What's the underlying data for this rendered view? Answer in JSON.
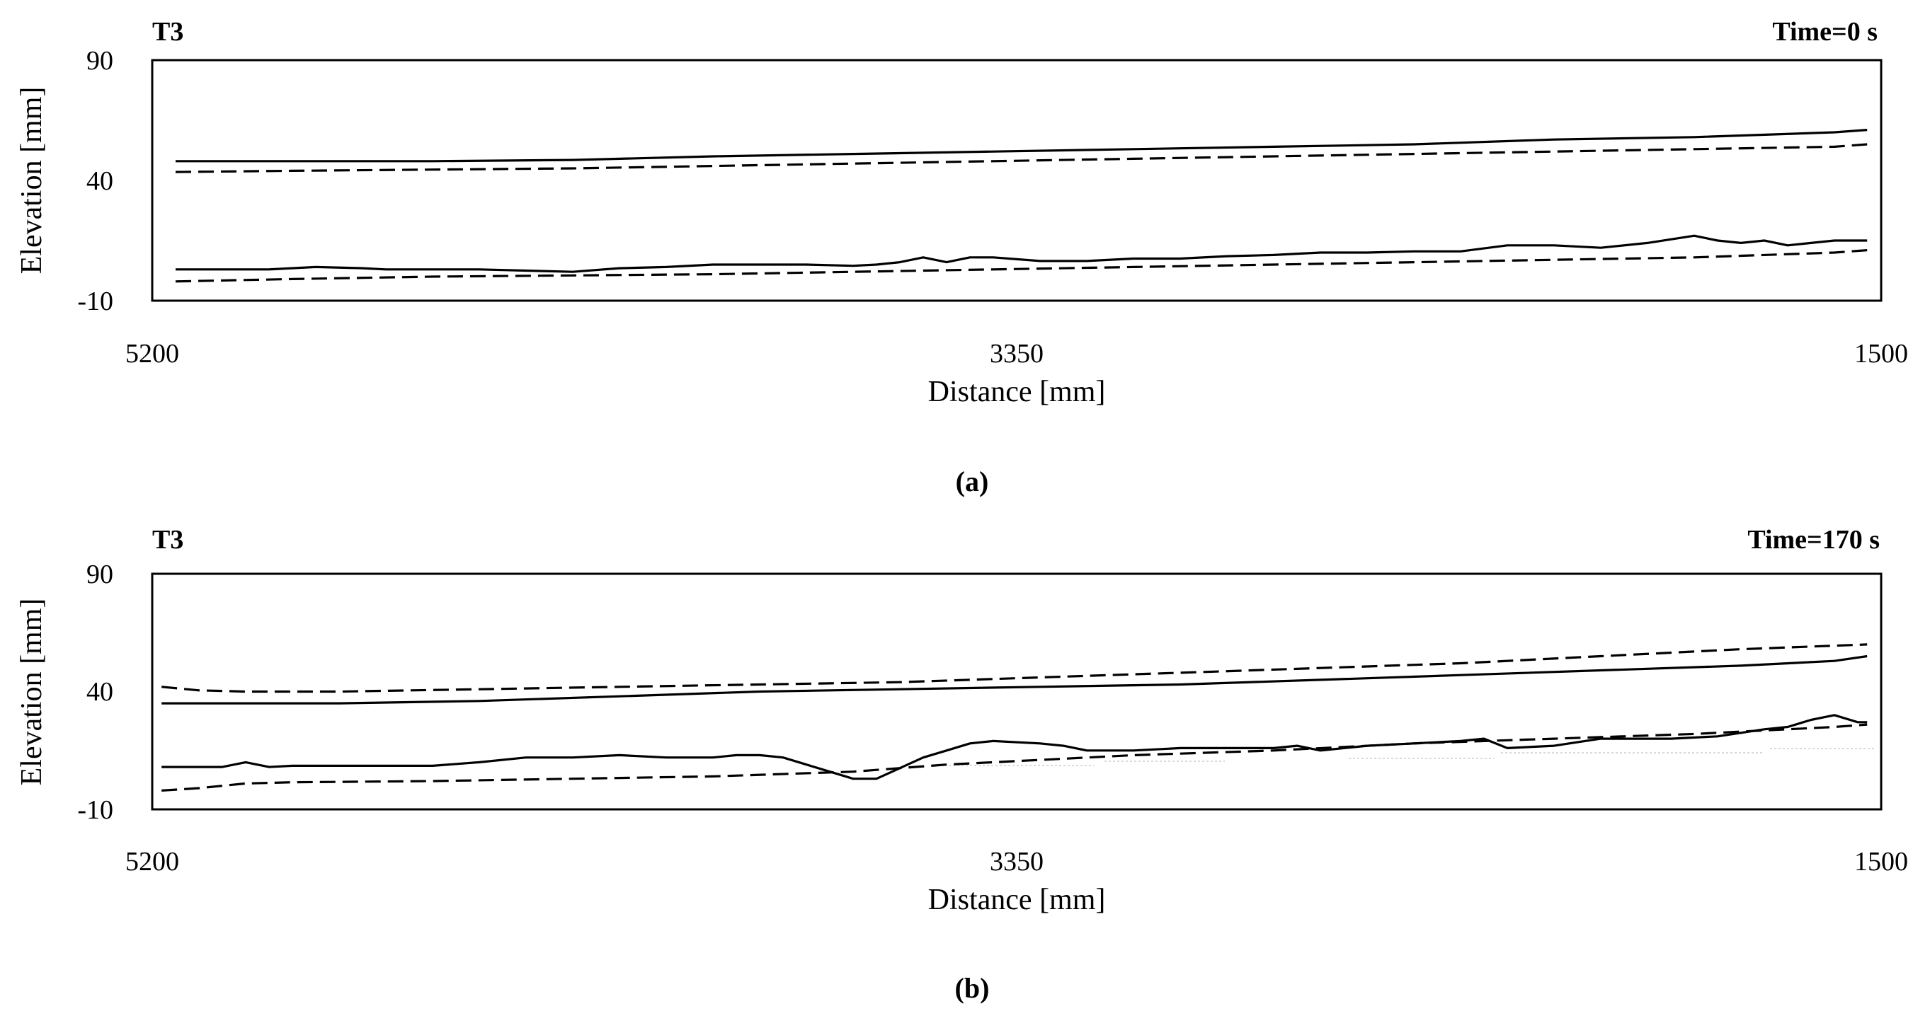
{
  "chart_data": [
    {
      "type": "line",
      "panel_label": "(a)",
      "left_title": "T3",
      "right_title": "Time=0 s",
      "xlabel": "Distance [mm]",
      "ylabel": "Elevation [mm]",
      "xlim": [
        5200,
        1500
      ],
      "ylim": [
        -10,
        90
      ],
      "xticks": [
        5200,
        3350,
        1500
      ],
      "yticks": [
        90,
        40,
        -10
      ],
      "grid": false,
      "series": [
        {
          "style": "solid",
          "x": [
            5150,
            4900,
            4600,
            4300,
            4000,
            3700,
            3400,
            3100,
            2800,
            2500,
            2200,
            1900,
            1600,
            1530
          ],
          "y": [
            48,
            48,
            48,
            48.5,
            50,
            51,
            52,
            53,
            54,
            55,
            57,
            58,
            60,
            61
          ]
        },
        {
          "style": "dashed",
          "x": [
            5150,
            4900,
            4600,
            4300,
            4000,
            3700,
            3400,
            3100,
            2800,
            2500,
            2200,
            1900,
            1600,
            1530
          ],
          "y": [
            43.5,
            44,
            44.5,
            45,
            46,
            47,
            48,
            49,
            50,
            51,
            52,
            53,
            54,
            55
          ]
        },
        {
          "style": "solid",
          "x": [
            5150,
            4950,
            4850,
            4750,
            4700,
            4600,
            4500,
            4400,
            4300,
            4200,
            4100,
            4000,
            3900,
            3800,
            3700,
            3650,
            3600,
            3550,
            3500,
            3450,
            3400,
            3300,
            3200,
            3100,
            3000,
            2900,
            2800,
            2700,
            2600,
            2500,
            2400,
            2300,
            2200,
            2100,
            2000,
            1900,
            1850,
            1800,
            1750,
            1700,
            1650,
            1600,
            1530
          ],
          "y": [
            3,
            3,
            4,
            3.5,
            3,
            3,
            3,
            2.5,
            2,
            3.5,
            4,
            5,
            5,
            5,
            4.5,
            5,
            6,
            8,
            6,
            8,
            8,
            6.5,
            6.5,
            7.5,
            7.5,
            8.5,
            9,
            10,
            10,
            10.5,
            10.5,
            13,
            13,
            12,
            14,
            17,
            15,
            14,
            15,
            13,
            14,
            15,
            15
          ]
        },
        {
          "style": "dashed",
          "x": [
            5150,
            4900,
            4600,
            4300,
            4000,
            3700,
            3400,
            3100,
            2800,
            2500,
            2200,
            1900,
            1600,
            1530
          ],
          "y": [
            -2,
            -1,
            0,
            0.5,
            1,
            2,
            3,
            4,
            5,
            6,
            7,
            8,
            10,
            11
          ]
        }
      ]
    },
    {
      "type": "line",
      "panel_label": "(b)",
      "left_title": "T3",
      "right_title": "Time=170 s",
      "xlabel": "Distance [mm]",
      "ylabel": "Elevation [mm]",
      "xlim": [
        5200,
        1500
      ],
      "ylim": [
        -10,
        90
      ],
      "xticks": [
        5200,
        3350,
        1500
      ],
      "yticks": [
        90,
        40,
        -10
      ],
      "grid": false,
      "series": [
        {
          "style": "dashed",
          "x": [
            5180,
            5100,
            5000,
            4800,
            4500,
            4200,
            3900,
            3600,
            3300,
            3000,
            2700,
            2400,
            2100,
            1800,
            1530
          ],
          "y": [
            42,
            40.5,
            40,
            40,
            41,
            42,
            43,
            44,
            46,
            48,
            50,
            52,
            55,
            58,
            60
          ]
        },
        {
          "style": "solid",
          "x": [
            5180,
            5000,
            4800,
            4500,
            4200,
            3900,
            3600,
            3300,
            3000,
            2700,
            2400,
            2100,
            1800,
            1600,
            1530
          ],
          "y": [
            35,
            35,
            35,
            36,
            38,
            40,
            41,
            42,
            43,
            45,
            47,
            49,
            51,
            53,
            55
          ]
        },
        {
          "style": "solid",
          "x": [
            5180,
            5050,
            5000,
            4950,
            4900,
            4600,
            4500,
            4400,
            4300,
            4200,
            4100,
            4000,
            3950,
            3900,
            3850,
            3800,
            3750,
            3700,
            3650,
            3550,
            3500,
            3450,
            3400,
            3300,
            3250,
            3200,
            3100,
            3000,
            2900,
            2800,
            2750,
            2700,
            2600,
            2500,
            2400,
            2350,
            2300,
            2200,
            2100,
            1950,
            1850,
            1750,
            1700,
            1650,
            1600,
            1550,
            1530
          ],
          "y": [
            8,
            8,
            10,
            8,
            8.5,
            8.5,
            10,
            12,
            12,
            13,
            12,
            12,
            13,
            13,
            12,
            9,
            6,
            3,
            3,
            12,
            15,
            18,
            19,
            18,
            17,
            15,
            15,
            16,
            16,
            16,
            17,
            15,
            17,
            18,
            19,
            20,
            16,
            17,
            20,
            20,
            21,
            24,
            25,
            28,
            30,
            27,
            27
          ]
        },
        {
          "style": "dashed",
          "x": [
            5180,
            5100,
            5000,
            4900,
            4600,
            4300,
            4000,
            3700,
            3500,
            3300,
            3100,
            2800,
            2500,
            2200,
            1900,
            1600,
            1530
          ],
          "y": [
            -2,
            -1,
            1,
            1.5,
            2,
            3,
            4,
            6,
            9,
            11,
            13,
            15,
            18,
            20,
            22,
            25,
            26
          ]
        }
      ]
    }
  ]
}
